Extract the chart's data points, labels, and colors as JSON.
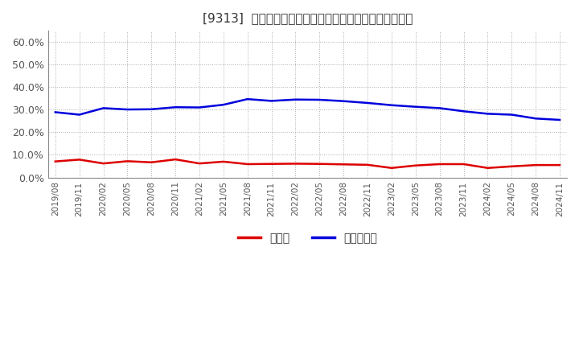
{
  "title": "[9313]  現顀金、有利子負債の総資産に対する比率の推移",
  "x_labels": [
    "2019/08",
    "2019/11",
    "2020/02",
    "2020/05",
    "2020/08",
    "2020/11",
    "2021/02",
    "2021/05",
    "2021/08",
    "2021/11",
    "2022/02",
    "2022/05",
    "2022/08",
    "2022/11",
    "2023/02",
    "2023/05",
    "2023/08",
    "2023/11",
    "2024/02",
    "2024/05",
    "2024/08",
    "2024/11"
  ],
  "cash": [
    0.071,
    0.079,
    0.062,
    0.072,
    0.067,
    0.08,
    0.062,
    0.07,
    0.059,
    0.06,
    0.061,
    0.06,
    0.058,
    0.056,
    0.042,
    0.053,
    0.059,
    0.059,
    0.042,
    0.049,
    0.055,
    0.055
  ],
  "debt": [
    0.289,
    0.278,
    0.307,
    0.301,
    0.302,
    0.311,
    0.31,
    0.322,
    0.347,
    0.339,
    0.345,
    0.344,
    0.338,
    0.33,
    0.32,
    0.313,
    0.307,
    0.293,
    0.282,
    0.278,
    0.261,
    0.255
  ],
  "cash_color": "#dd0000",
  "debt_color": "#0000dd",
  "ylim": [
    0.0,
    0.65
  ],
  "yticks": [
    0.0,
    0.1,
    0.2,
    0.3,
    0.4,
    0.5,
    0.6
  ],
  "ytick_labels": [
    "0.0%",
    "10.0%",
    "20.0%",
    "30.0%",
    "40.0%",
    "50.0%",
    "60.0%"
  ],
  "legend_cash": "現顀金",
  "legend_debt": "有利子負債",
  "background_color": "#ffffff",
  "grid_color": "#999999",
  "title_color": "#333333",
  "line_width": 1.8
}
